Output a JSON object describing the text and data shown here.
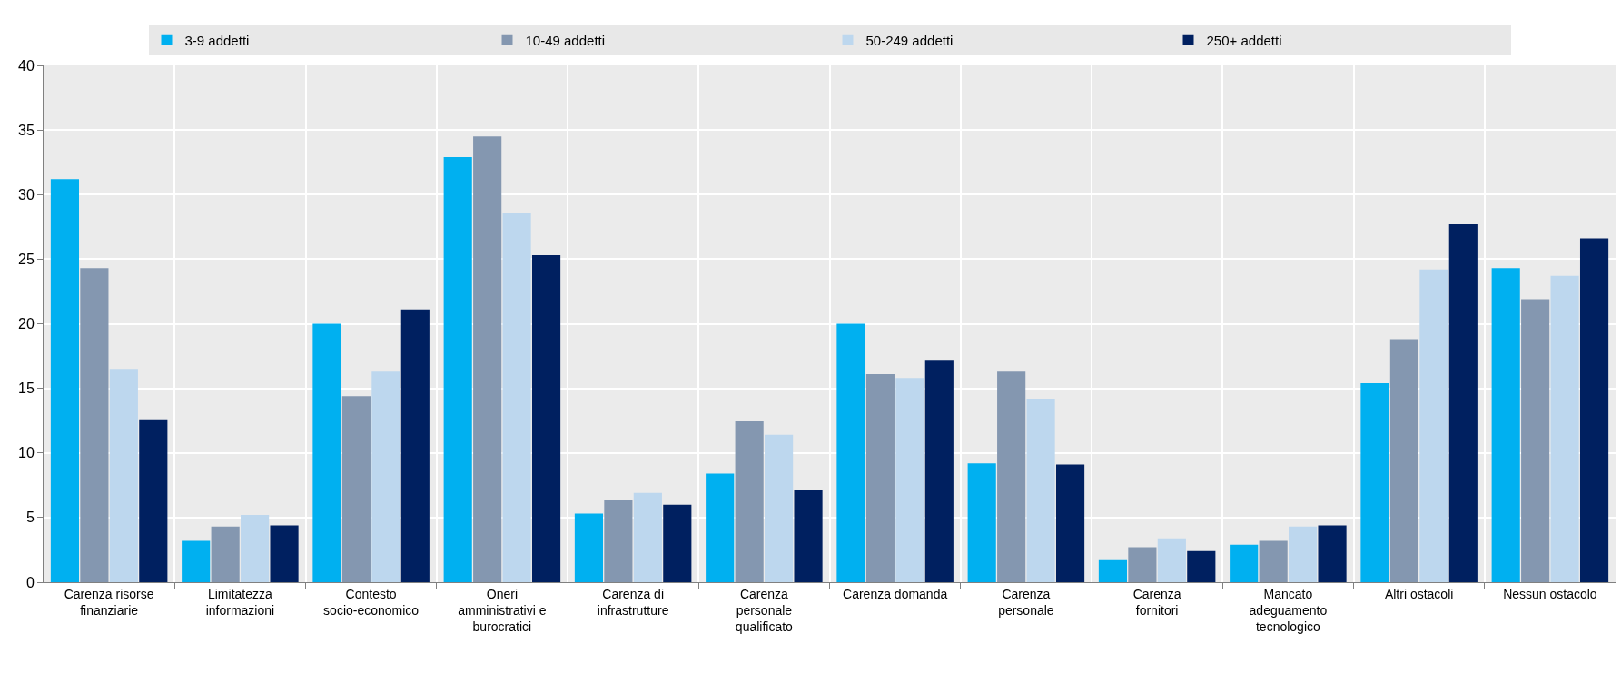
{
  "chart_data": {
    "type": "bar",
    "categories": [
      "Carenza risorse finanziarie",
      "Limitatezza informazioni",
      "Contesto socio-economico",
      "Oneri amministrativi e burocratici",
      "Carenza di infrastrutture",
      "Carenza personale qualificato",
      "Carenza domanda",
      "Carenza personale",
      "Carenza fornitori",
      "Mancato adeguamento tecnologico",
      "Altri ostacoli",
      "Nessun ostacolo"
    ],
    "series": [
      {
        "name": "3-9 addetti",
        "color": "#00b0f0",
        "values": [
          31.2,
          3.2,
          20.0,
          32.9,
          5.3,
          8.4,
          20.0,
          9.2,
          1.7,
          2.9,
          15.4,
          24.3
        ]
      },
      {
        "name": "10-49 addetti",
        "color": "#8497b0",
        "values": [
          24.3,
          4.3,
          14.4,
          34.5,
          6.4,
          12.5,
          16.1,
          16.3,
          2.7,
          3.2,
          18.8,
          21.9
        ]
      },
      {
        "name": "50-249 addetti",
        "color": "#bdd7ee",
        "values": [
          16.5,
          5.2,
          16.3,
          28.6,
          6.9,
          11.4,
          15.8,
          14.2,
          3.4,
          4.3,
          24.2,
          23.7
        ]
      },
      {
        "name": "250+ addetti",
        "color": "#002060",
        "values": [
          12.6,
          4.4,
          21.1,
          25.3,
          6.0,
          7.1,
          17.2,
          9.1,
          2.4,
          4.4,
          27.7,
          26.6
        ]
      }
    ],
    "ylim": [
      0,
      40
    ],
    "yticks": [
      0,
      5,
      10,
      15,
      20,
      25,
      30,
      35,
      40
    ],
    "grid": true,
    "legend": "top"
  }
}
